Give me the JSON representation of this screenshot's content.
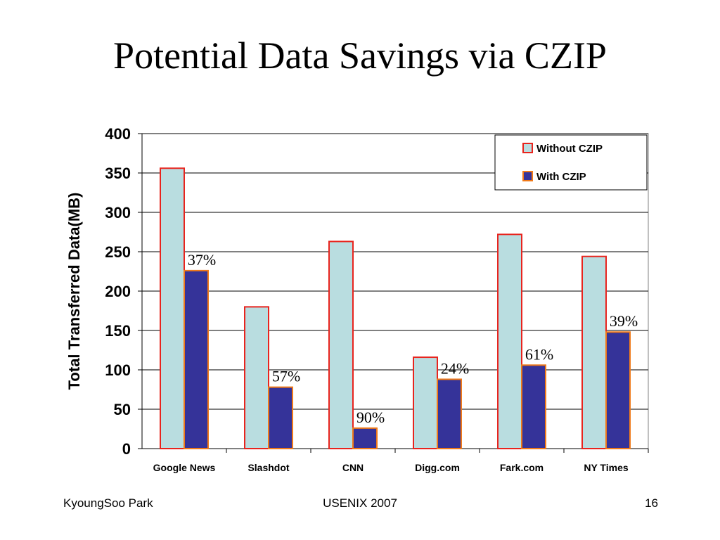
{
  "slide": {
    "title": "Potential Data Savings via CZIP",
    "footer_left": "KyoungSoo Park",
    "footer_center": "USENIX 2007",
    "footer_right": "16"
  },
  "colors": {
    "without_fill": "#b9dde0",
    "without_stroke": "#e8241e",
    "with_fill": "#353399",
    "with_stroke": "#f07a1a",
    "grid": "#000000"
  },
  "chart_data": {
    "type": "bar",
    "title": "",
    "xlabel": "",
    "ylabel": "Total Transferred Data(MB)",
    "ylim": [
      0,
      400
    ],
    "yticks": [
      0,
      50,
      100,
      150,
      200,
      250,
      300,
      350,
      400
    ],
    "grid": true,
    "legend_position": "top-right",
    "categories": [
      "Google News",
      "Slashdot",
      "CNN",
      "Digg.com",
      "Fark.com",
      "NY Times"
    ],
    "series": [
      {
        "name": "Without CZIP",
        "values": [
          356,
          180,
          263,
          116,
          272,
          244
        ]
      },
      {
        "name": "With CZIP",
        "values": [
          226,
          78,
          26,
          88,
          106,
          148
        ]
      }
    ],
    "annotations": [
      "37%",
      "57%",
      "90%",
      "24%",
      "61%",
      "39%"
    ]
  }
}
